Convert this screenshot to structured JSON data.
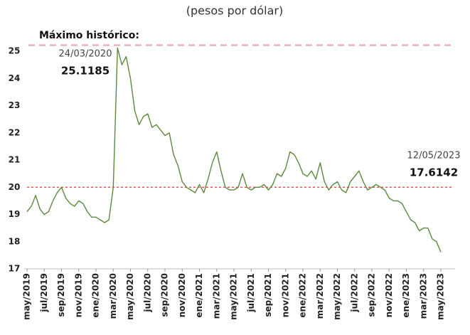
{
  "chart_data": {
    "type": "line",
    "subtitle": "(pesos por dólar)",
    "categories": [
      "may/2019",
      null,
      null,
      null,
      "jul/2019",
      null,
      null,
      null,
      "sep/2019",
      null,
      null,
      null,
      "nov/2019",
      null,
      null,
      null,
      "ene/2020",
      null,
      null,
      null,
      "mar/2020",
      null,
      null,
      null,
      "may/2020",
      null,
      null,
      null,
      "jul/2020",
      null,
      null,
      null,
      "sep/2020",
      null,
      null,
      null,
      "nov/2020",
      null,
      null,
      null,
      "ene/2021",
      null,
      null,
      null,
      "mar/2021",
      null,
      null,
      null,
      "may/2021",
      null,
      null,
      null,
      "jul/2021",
      null,
      null,
      null,
      "sep/2021",
      null,
      null,
      null,
      "nov/2021",
      null,
      null,
      null,
      "ene/2022",
      null,
      null,
      null,
      "mar/2022",
      null,
      null,
      null,
      "may/2022",
      null,
      null,
      null,
      "jul/2022",
      null,
      null,
      null,
      "sep/2022",
      null,
      null,
      null,
      "nov/2022",
      null,
      null,
      null,
      "ene/2023",
      null,
      null,
      null,
      "mar/2023",
      null,
      null,
      null,
      "may/2023"
    ],
    "series": [
      {
        "color": "#5b8a3c",
        "values": [
          19.1,
          19.3,
          19.7,
          19.2,
          19.0,
          19.1,
          19.5,
          19.8,
          20.0,
          19.6,
          19.4,
          19.3,
          19.5,
          19.4,
          19.1,
          18.9,
          18.9,
          18.8,
          18.7,
          18.8,
          20.0,
          25.1185,
          24.5,
          24.8,
          24.0,
          22.8,
          22.3,
          22.6,
          22.7,
          22.2,
          22.3,
          22.1,
          21.9,
          22.0,
          21.2,
          20.8,
          20.2,
          20.0,
          19.9,
          19.8,
          20.1,
          19.8,
          20.3,
          20.9,
          21.3,
          20.6,
          20.0,
          19.9,
          19.9,
          20.0,
          20.5,
          20.0,
          19.9,
          20.0,
          20.0,
          20.1,
          19.9,
          20.1,
          20.5,
          20.4,
          20.7,
          21.3,
          21.2,
          20.9,
          20.5,
          20.4,
          20.6,
          20.3,
          20.9,
          20.2,
          19.9,
          20.1,
          20.2,
          19.9,
          19.8,
          20.2,
          20.4,
          20.6,
          20.2,
          19.9,
          20.0,
          20.1,
          20.0,
          19.9,
          19.6,
          19.5,
          19.5,
          19.4,
          19.1,
          18.8,
          18.7,
          18.4,
          18.5,
          18.5,
          18.1,
          18.0,
          17.6142
        ]
      }
    ],
    "ylim": [
      17,
      25.3
    ],
    "yticks": [
      17,
      18,
      19,
      20,
      21,
      22,
      23,
      24,
      25
    ],
    "reference_line": {
      "value": 20,
      "color": "#e03a3a"
    },
    "annotations": [
      {
        "label": "Máximo histórico:",
        "date": "24/03/2020",
        "value": 25.1185,
        "color": "#e8b4bc"
      },
      {
        "date": "12/05/2023",
        "value": 17.6142
      }
    ]
  }
}
